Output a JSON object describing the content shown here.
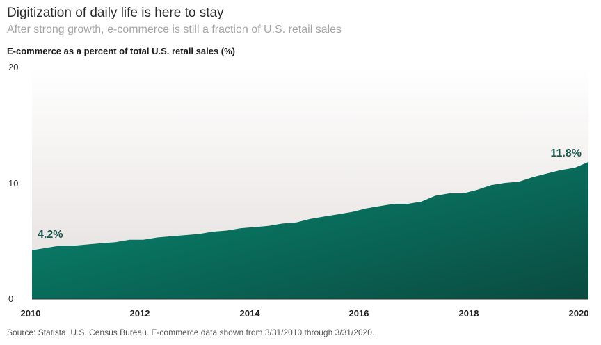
{
  "header": {
    "title": "Digitization of daily life is here to stay",
    "subtitle": "After strong growth, e-commerce is still a fraction of U.S. retail sales"
  },
  "chart_data": {
    "type": "area",
    "title": "Digitization of daily life is here to stay",
    "subtitle": "After strong growth, e-commerce is still a fraction of U.S. retail sales",
    "ylabel": "E-commerce as a percent of total U.S. retail sales (%)",
    "xlabel": "",
    "ylim": [
      0,
      20
    ],
    "yticks": [
      "0",
      "10",
      "20"
    ],
    "xticks": [
      "2010",
      "2012",
      "2014",
      "2016",
      "2018",
      "2020"
    ],
    "xlim": [
      "2010-03-31",
      "2020-03-31"
    ],
    "grid": false,
    "x": [
      "2010-03-31",
      "2010-06-30",
      "2010-09-30",
      "2010-12-31",
      "2011-03-31",
      "2011-06-30",
      "2011-09-30",
      "2011-12-31",
      "2012-03-31",
      "2012-06-30",
      "2012-09-30",
      "2012-12-31",
      "2013-03-31",
      "2013-06-30",
      "2013-09-30",
      "2013-12-31",
      "2014-03-31",
      "2014-06-30",
      "2014-09-30",
      "2014-12-31",
      "2015-03-31",
      "2015-06-30",
      "2015-09-30",
      "2015-12-31",
      "2016-03-31",
      "2016-06-30",
      "2016-09-30",
      "2016-12-31",
      "2017-03-31",
      "2017-06-30",
      "2017-09-30",
      "2017-12-31",
      "2018-03-31",
      "2018-06-30",
      "2018-09-30",
      "2018-12-31",
      "2019-03-31",
      "2019-06-30",
      "2019-09-30",
      "2019-12-31",
      "2020-03-31"
    ],
    "series": [
      {
        "name": "",
        "values": [
          4.2,
          4.4,
          4.6,
          4.6,
          4.7,
          4.8,
          4.9,
          5.1,
          5.1,
          5.3,
          5.4,
          5.5,
          5.6,
          5.8,
          5.9,
          6.1,
          6.2,
          6.3,
          6.5,
          6.6,
          6.9,
          7.1,
          7.3,
          7.5,
          7.8,
          8.0,
          8.2,
          8.2,
          8.4,
          8.9,
          9.1,
          9.1,
          9.4,
          9.8,
          10.0,
          10.1,
          10.5,
          10.8,
          11.1,
          11.3,
          11.8
        ]
      }
    ],
    "annotations": [
      {
        "text": "4.2%",
        "x": "2010-03-31",
        "y": 4.2
      },
      {
        "text": "11.8%",
        "x": "2020-03-31",
        "y": 11.8
      }
    ],
    "colors": {
      "area_top": "#0a4a40",
      "area_bottom": "#088c74",
      "plot_bg_top": "#ffffff",
      "plot_bg_bottom": "#e3dedc",
      "annotation": "#1c5a4f"
    }
  },
  "footer": {
    "source": "Source: Statista, U.S. Census Bureau. E-commerce data shown from 3/31/2010 through 3/31/2020."
  }
}
